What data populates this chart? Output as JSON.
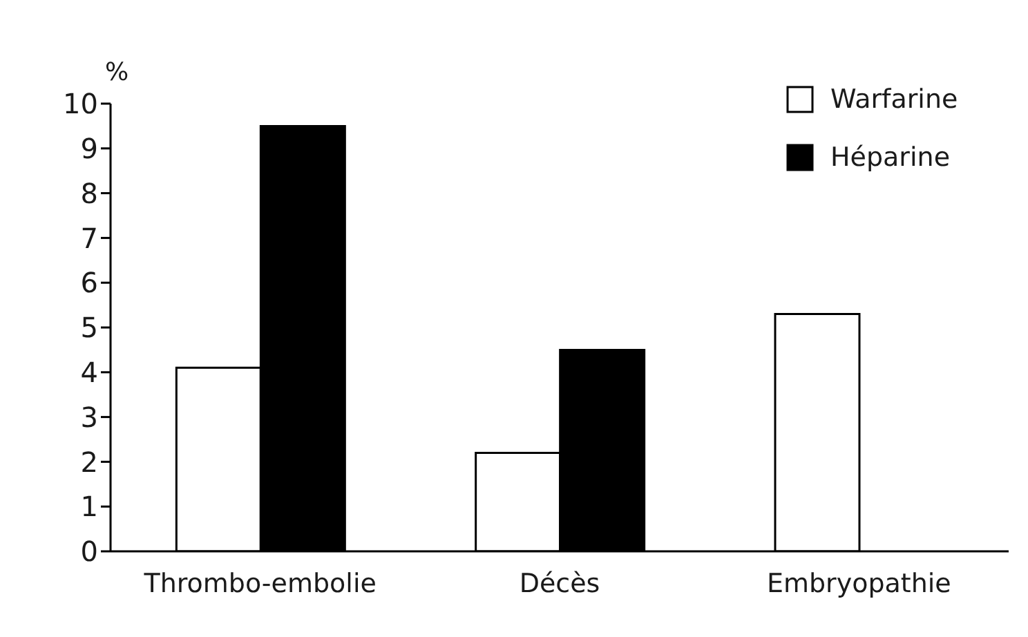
{
  "chart_data": {
    "type": "bar",
    "ylabel": "%",
    "categories": [
      "Thrombo-embolie",
      "Décès",
      "Embryopathie"
    ],
    "series": [
      {
        "name": "Warfarine",
        "color": "#ffffff",
        "values": [
          4.1,
          2.2,
          5.3
        ]
      },
      {
        "name": "Héparine",
        "color": "#000000",
        "values": [
          9.5,
          4.5,
          0
        ]
      }
    ],
    "ylim": [
      0,
      10
    ],
    "yticks": [
      0,
      1,
      2,
      3,
      4,
      5,
      6,
      7,
      8,
      9,
      10
    ],
    "legend": "top right"
  }
}
